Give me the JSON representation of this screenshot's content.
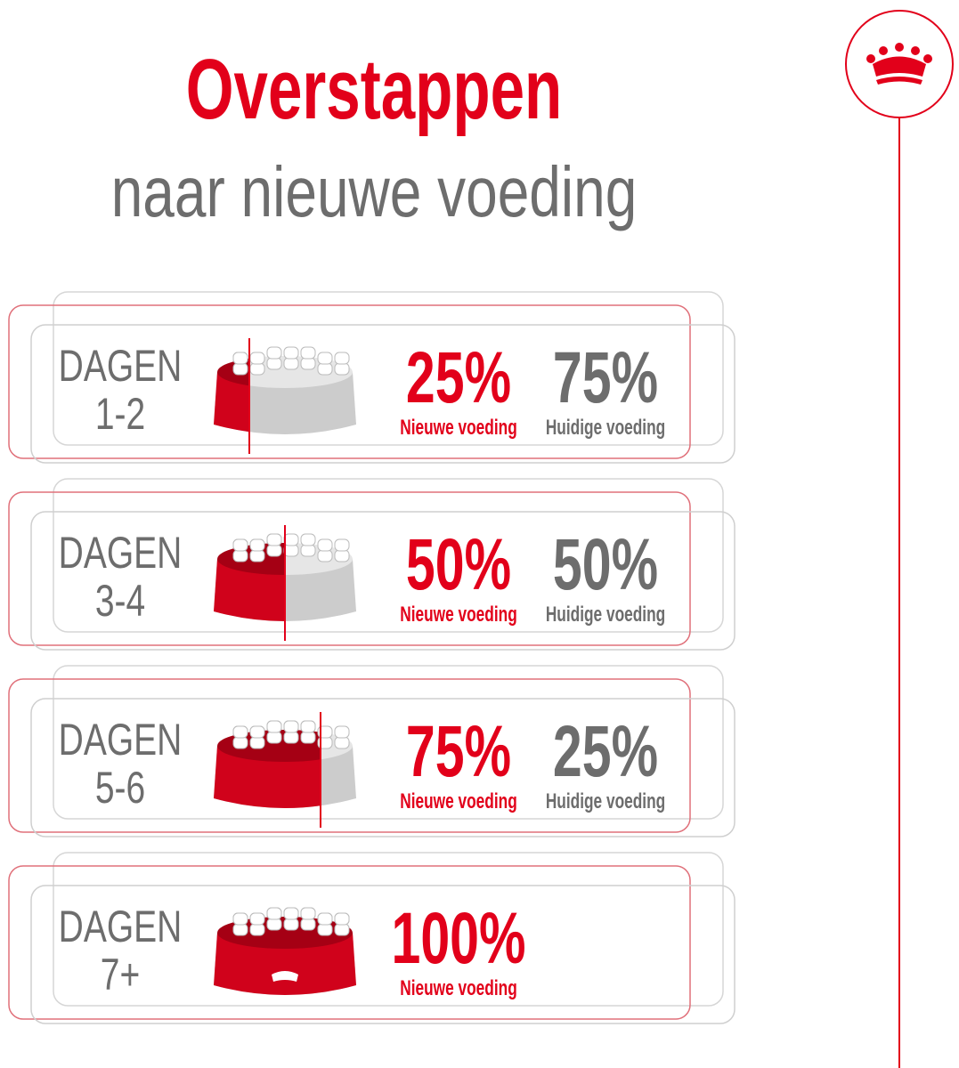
{
  "header": {
    "title": "Overstappen",
    "subtitle": "naar nieuwe voeding"
  },
  "steps": [
    {
      "days_label": "DAGEN",
      "days": "1-2",
      "new_percent": "25%",
      "new_label": "Nieuwe voeding",
      "current_percent": "75%",
      "current_label": "Huidige voeding"
    },
    {
      "days_label": "DAGEN",
      "days": "3-4",
      "new_percent": "50%",
      "new_label": "Nieuwe voeding",
      "current_percent": "50%",
      "current_label": "Huidige voeding"
    },
    {
      "days_label": "DAGEN",
      "days": "5-6",
      "new_percent": "75%",
      "new_label": "Nieuwe voeding",
      "current_percent": "25%",
      "current_label": "Huidige voeding"
    },
    {
      "days_label": "DAGEN",
      "days": "7+",
      "new_percent": "100%",
      "new_label": "Nieuwe voeding"
    }
  ]
}
